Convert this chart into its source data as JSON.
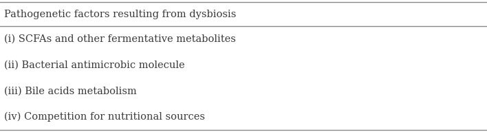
{
  "header": "Pathogenetic factors resulting from dysbiosis",
  "rows": [
    "(i) SCFAs and other fermentative metabolites",
    "(ii) Bacterial antimicrobic molecule",
    "(iii) Bile acids metabolism",
    "(iv) Competition for nutritional sources"
  ],
  "background_color": "#ffffff",
  "text_color": "#3a3a3a",
  "header_fontsize": 10.5,
  "row_fontsize": 10.5,
  "border_color": "#888888",
  "fig_width": 7.08,
  "fig_height": 1.92,
  "dpi": 100
}
